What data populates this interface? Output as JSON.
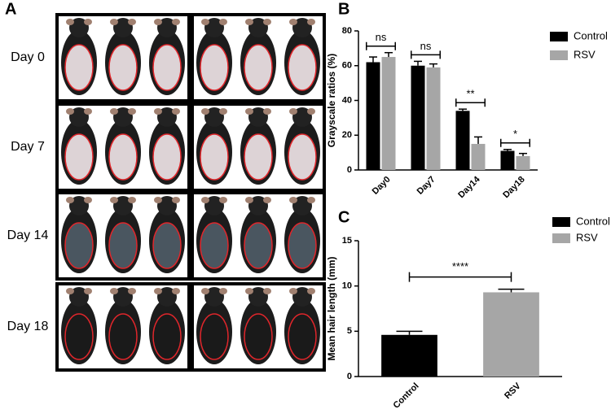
{
  "panel_a": {
    "label": "A",
    "rows": [
      "Day 0",
      "Day 7",
      "Day 14",
      "Day 18"
    ]
  },
  "chart_data": [
    {
      "type": "bar",
      "panel_label": "B",
      "y_label": "Grayscale ratios (%)",
      "categories": [
        "Day0",
        "Day7",
        "Day14",
        "Day18"
      ],
      "series": [
        {
          "name": "Control",
          "color": "#000000",
          "values": [
            62,
            60,
            34,
            11
          ],
          "errors": [
            3,
            2.5,
            1,
            0.8
          ]
        },
        {
          "name": "RSV",
          "color": "#a6a6a6",
          "values": [
            65,
            59,
            15,
            8
          ],
          "errors": [
            2.5,
            2,
            4,
            1.5
          ]
        }
      ],
      "annotations": [
        "ns",
        "ns",
        "**",
        "*"
      ],
      "ylim": [
        0,
        80
      ],
      "yticks": [
        0,
        20,
        40,
        60,
        80
      ],
      "legend": "top-right"
    },
    {
      "type": "bar",
      "panel_label": "C",
      "y_label": "Mean hair length (mm)",
      "categories": [
        "Control",
        "RSV"
      ],
      "values": [
        4.6,
        9.3
      ],
      "errors": [
        0.4,
        0.35
      ],
      "colors": [
        "#000000",
        "#a6a6a6"
      ],
      "annotations": [
        "****"
      ],
      "ylim": [
        0,
        15
      ],
      "yticks": [
        0,
        5,
        10,
        15
      ],
      "legend": "top-right"
    }
  ]
}
